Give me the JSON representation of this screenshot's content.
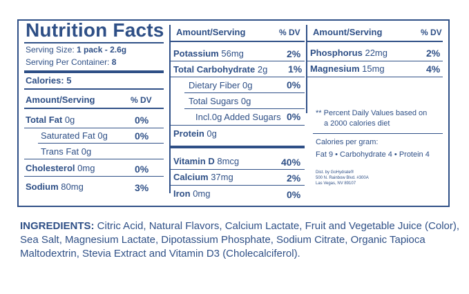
{
  "facts": {
    "title": "Nutrition Facts",
    "serving_size_label": "Serving Size: ",
    "serving_size_value": "1 pack - 2.6g",
    "servings_label": "Serving Per Container: ",
    "servings_value": "8",
    "calories": "Calories: 5",
    "amount_header": "Amount/Serving",
    "dv_header": "% DV"
  },
  "col1": [
    {
      "name": "Total Fat",
      "amount": "0g",
      "dv": "0%",
      "bold": true
    },
    {
      "name": "Saturated Fat",
      "amount": "0g",
      "dv": "0%",
      "bold": false
    },
    {
      "name": "Trans Fat",
      "amount": "0g",
      "dv": "",
      "bold": false
    },
    {
      "name": "Cholesterol",
      "amount": "0mg",
      "dv": "0%",
      "bold": true
    },
    {
      "name": "Sodium",
      "amount": "80mg",
      "dv": "3%",
      "bold": true
    }
  ],
  "col2": [
    {
      "name": "Potassium",
      "amount": "56mg",
      "dv": "2%",
      "bold": true
    },
    {
      "name": "Total Carbohydrate",
      "amount": "2g",
      "dv": "1%",
      "bold": true
    },
    {
      "name": "Dietary Fiber",
      "amount": "0g",
      "dv": "0%",
      "bold": false
    },
    {
      "name": "Total Sugars",
      "amount": "0g",
      "dv": "",
      "bold": false
    },
    {
      "name": "Incl.",
      "amount": "0g Added Sugars",
      "dv": "0%",
      "bold": false
    },
    {
      "name": "Protein",
      "amount": "0g",
      "dv": "",
      "bold": true
    }
  ],
  "col2_vitamins": [
    {
      "name": "Vitamin D",
      "amount": "8mcg",
      "dv": "40%"
    },
    {
      "name": "Calcium",
      "amount": "37mg",
      "dv": "2%"
    },
    {
      "name": "Iron",
      "amount": "0mg",
      "dv": "0%"
    }
  ],
  "col3": [
    {
      "name": "Phosphorus",
      "amount": "22mg",
      "dv": "2%"
    },
    {
      "name": "Magnesium",
      "amount": "15mg",
      "dv": "4%"
    }
  ],
  "footnote": {
    "line1": "** Percent Daily Values based on",
    "line2": "a 2000 calories diet"
  },
  "calories_per_gram": {
    "title": "Calories per gram:",
    "line": "Fat 9 • Carbohydrate 4 • Protein 4"
  },
  "distributor": {
    "line1": "Dist. by GoHydrate®",
    "line2": "500 N. Rainbow Blvd. #300A",
    "line3": "Las Vegas, NV 89107"
  },
  "ingredients": {
    "label": "INGREDIENTS:",
    "text": " Citric Acid, Natural Flavors, Calcium Lactate, Fruit and Vegetable Juice (Color), Sea Salt, Magnesium Lactate, Dipotassium Phosphate, Sodium Citrate, Organic Tapioca Maltodextrin, Stevia Extract and Vitamin D3 (Cholecalciferol)."
  }
}
